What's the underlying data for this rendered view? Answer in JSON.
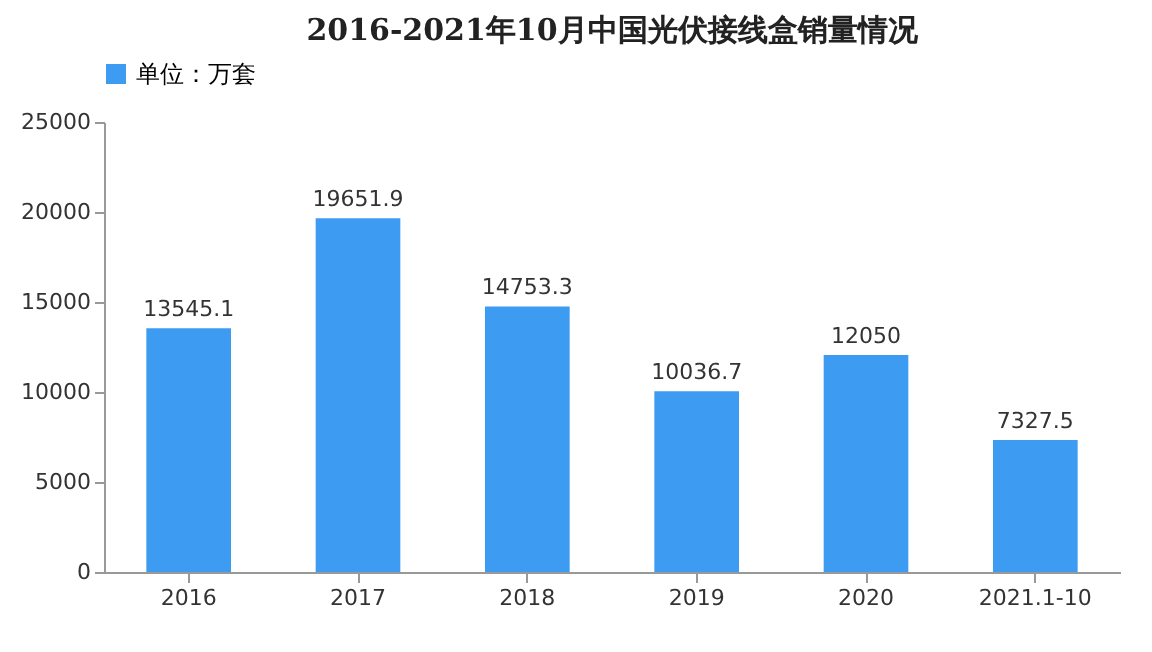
{
  "chart_data": {
    "type": "bar",
    "title": "2016-2021年10月中国光伏接线盒销量情况",
    "categories": [
      "2016",
      "2017",
      "2018",
      "2019",
      "2020",
      "2021.1-10"
    ],
    "series": [
      {
        "name": "单位：万套",
        "color": "#3d9cf2",
        "values": [
          13545.1,
          19651.9,
          14753.3,
          10036.7,
          12050,
          7327.5
        ]
      }
    ],
    "ylim": [
      0,
      25000
    ],
    "yticks": [
      0,
      5000,
      10000,
      15000,
      20000,
      25000
    ],
    "data_labels": true,
    "legend": "top",
    "grid": false
  }
}
